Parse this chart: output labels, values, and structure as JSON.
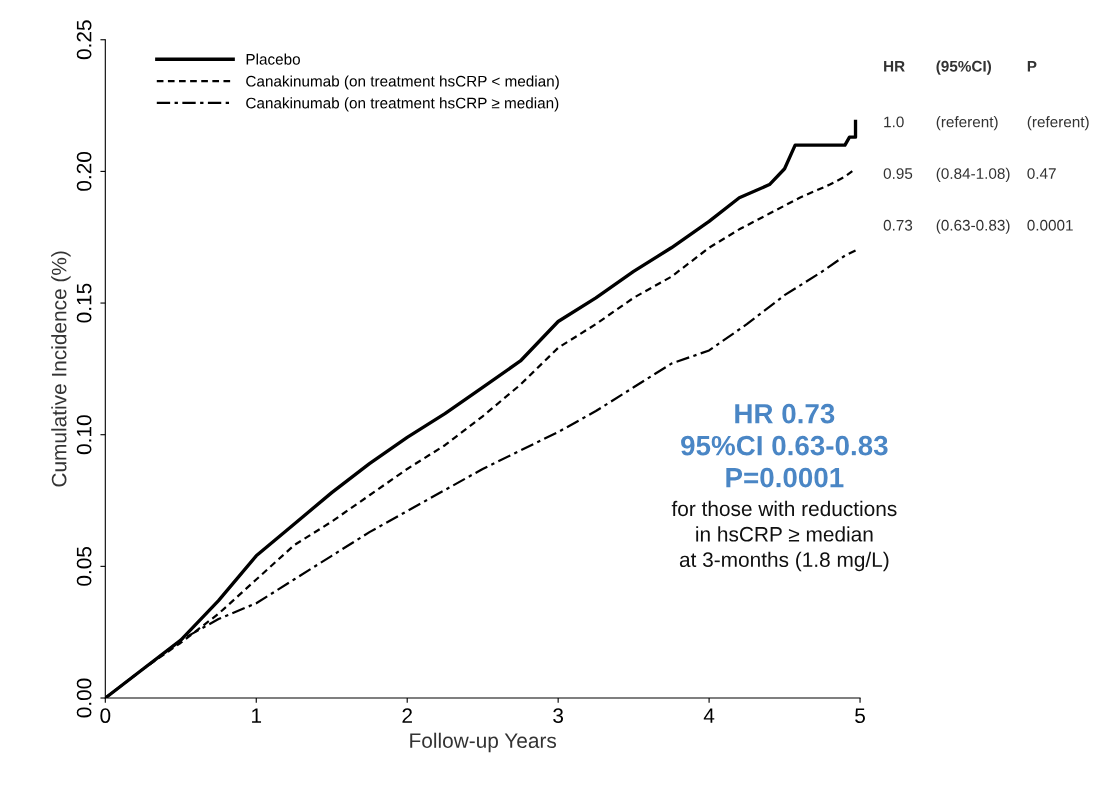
{
  "chart_data": {
    "type": "line",
    "xlabel": "Follow-up Years",
    "ylabel": "Cumulative Incidence (%)",
    "xlim": [
      0,
      5
    ],
    "ylim": [
      0,
      0.25
    ],
    "xticks": [
      0,
      1,
      2,
      3,
      4,
      5
    ],
    "yticks": [
      {
        "value": 0,
        "label": "0.00"
      },
      {
        "value": 0.05,
        "label": "0.05"
      },
      {
        "value": 0.1,
        "label": "0.10"
      },
      {
        "value": 0.15,
        "label": "0.15"
      },
      {
        "value": 0.2,
        "label": "0.20"
      },
      {
        "value": 0.25,
        "label": "0.25"
      }
    ],
    "grid": false,
    "legend": "top left",
    "marker": "none",
    "series": [
      {
        "name": "Placebo",
        "color": "#000000",
        "line_style": "solid",
        "x": [
          0,
          0.25,
          0.5,
          0.75,
          1,
          1.25,
          1.5,
          1.75,
          2,
          2.25,
          2.5,
          2.75,
          3,
          3.25,
          3.5,
          3.75,
          4,
          4.2,
          4.4,
          4.5,
          4.57,
          4.9,
          4.93,
          4.97,
          4.97
        ],
        "values": [
          0,
          0.011,
          0.022,
          0.037,
          0.054,
          0.066,
          0.078,
          0.089,
          0.099,
          0.108,
          0.118,
          0.128,
          0.143,
          0.152,
          0.162,
          0.171,
          0.181,
          0.19,
          0.195,
          0.201,
          0.21,
          0.21,
          0.213,
          0.213,
          0.219
        ]
      },
      {
        "name": "Canakinumab (on treatment hsCRP < median)",
        "color": "#000000",
        "line_style": "dashed",
        "x": [
          0,
          0.25,
          0.5,
          0.75,
          1,
          1.25,
          1.5,
          1.75,
          2,
          2.25,
          2.5,
          2.75,
          3,
          3.25,
          3.5,
          3.75,
          4,
          4.2,
          4.4,
          4.6,
          4.8,
          4.9,
          4.97
        ],
        "values": [
          0,
          0.011,
          0.021,
          0.032,
          0.045,
          0.058,
          0.067,
          0.077,
          0.087,
          0.096,
          0.107,
          0.119,
          0.133,
          0.142,
          0.152,
          0.16,
          0.171,
          0.178,
          0.184,
          0.19,
          0.195,
          0.198,
          0.201
        ]
      },
      {
        "name": "Canakinumab (on treatment hsCRP ≥ median)",
        "color": "#000000",
        "line_style": "dashdot",
        "x": [
          0,
          0.25,
          0.5,
          0.75,
          1,
          1.25,
          1.5,
          1.75,
          2,
          2.25,
          2.5,
          2.75,
          3,
          3.25,
          3.5,
          3.75,
          4,
          4.25,
          4.5,
          4.75,
          4.9,
          4.97
        ],
        "values": [
          0,
          0.011,
          0.022,
          0.03,
          0.036,
          0.045,
          0.054,
          0.063,
          0.071,
          0.079,
          0.087,
          0.094,
          0.101,
          0.109,
          0.118,
          0.127,
          0.132,
          0.142,
          0.153,
          0.162,
          0.168,
          0.17
        ]
      }
    ],
    "annotations": [
      "HR",
      "(95%CI)",
      "P",
      "1.0",
      "(referent)",
      "(referent)",
      "0.95",
      "(0.84-1.08)",
      "0.47",
      "0.73",
      "(0.63-0.83)",
      "0.0001",
      "HR 0.73\n95%CI 0.63-0.83\nP=0.0001",
      "for those with reductions\nin hsCRP ≥ median\nat 3-months (1.8 mg/L)"
    ]
  }
}
